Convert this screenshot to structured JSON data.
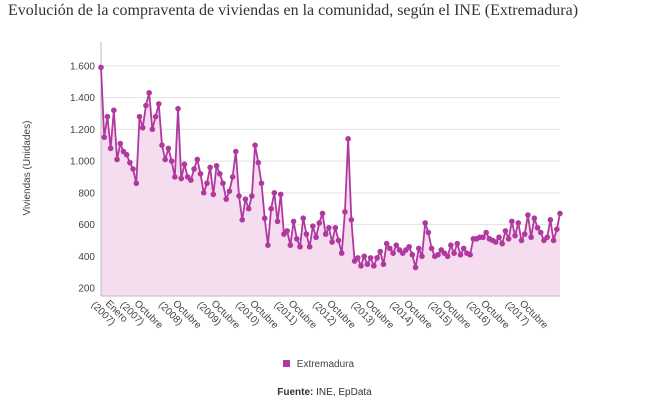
{
  "title": "Evolución de la compraventa de viviendas en la comunidad, según el INE (Extremadura)",
  "source": {
    "label": "Fuente:",
    "text": " INE, EpData"
  },
  "colors": {
    "line": "#b0399f",
    "fill": "#f6dcef",
    "grid": "#e3e3e3"
  },
  "chart_data": {
    "type": "area",
    "title": "Evolución de la compraventa de viviendas en la comunidad, según el INE (Extremadura)",
    "ylabel": "Viviendas (Unidades)",
    "xlabel": "",
    "ylim": [
      150,
      1750
    ],
    "yticks": [
      200,
      400,
      600,
      800,
      "1.000",
      "1.200",
      "1.400",
      "1.600"
    ],
    "xtick_labels": [
      {
        "l1": "Enero",
        "l2": "(2007)",
        "i": 0
      },
      {
        "l1": "Octubre",
        "l2": "(2007)",
        "i": 9
      },
      {
        "l1": "Octubre",
        "l2": "(2008)",
        "i": 21
      },
      {
        "l1": "Octubre",
        "l2": "(2009)",
        "i": 33
      },
      {
        "l1": "Octubre",
        "l2": "(2010)",
        "i": 45
      },
      {
        "l1": "Octubre",
        "l2": "(2011)",
        "i": 57
      },
      {
        "l1": "Octubre",
        "l2": "(2012)",
        "i": 69
      },
      {
        "l1": "Octubre",
        "l2": "(2013)",
        "i": 81
      },
      {
        "l1": "Octubre",
        "l2": "(2014)",
        "i": 93
      },
      {
        "l1": "Octubre",
        "l2": "(2015)",
        "i": 105
      },
      {
        "l1": "Octubre",
        "l2": "(2016)",
        "i": 117
      },
      {
        "l1": "Octubre",
        "l2": "(2017)",
        "i": 129
      }
    ],
    "grid": true,
    "legend_position": "bottom",
    "series": [
      {
        "name": "Extremadura",
        "x_start": "Enero 2007",
        "frequency": "monthly",
        "values": [
          1590,
          1150,
          1280,
          1080,
          1320,
          1010,
          1110,
          1060,
          1040,
          990,
          950,
          860,
          1280,
          1210,
          1350,
          1430,
          1200,
          1280,
          1360,
          1100,
          1010,
          1080,
          1000,
          900,
          1330,
          890,
          980,
          900,
          880,
          950,
          1010,
          920,
          800,
          860,
          960,
          790,
          970,
          920,
          860,
          760,
          810,
          900,
          1060,
          780,
          630,
          760,
          700,
          780,
          1100,
          990,
          860,
          640,
          470,
          700,
          800,
          620,
          790,
          540,
          560,
          470,
          620,
          510,
          460,
          640,
          540,
          460,
          590,
          520,
          610,
          670,
          540,
          580,
          490,
          580,
          500,
          420,
          680,
          1140,
          630,
          370,
          390,
          340,
          400,
          350,
          390,
          340,
          390,
          430,
          350,
          480,
          450,
          420,
          470,
          440,
          420,
          440,
          460,
          410,
          330,
          450,
          400,
          610,
          550,
          450,
          400,
          410,
          440,
          420,
          400,
          470,
          420,
          480,
          410,
          450,
          420,
          410,
          510,
          510,
          520,
          520,
          550,
          510,
          500,
          490,
          520,
          480,
          560,
          510,
          620,
          530,
          610,
          500,
          540,
          660,
          520,
          640,
          580,
          550,
          500,
          520,
          630,
          500,
          570,
          670
        ]
      }
    ]
  }
}
